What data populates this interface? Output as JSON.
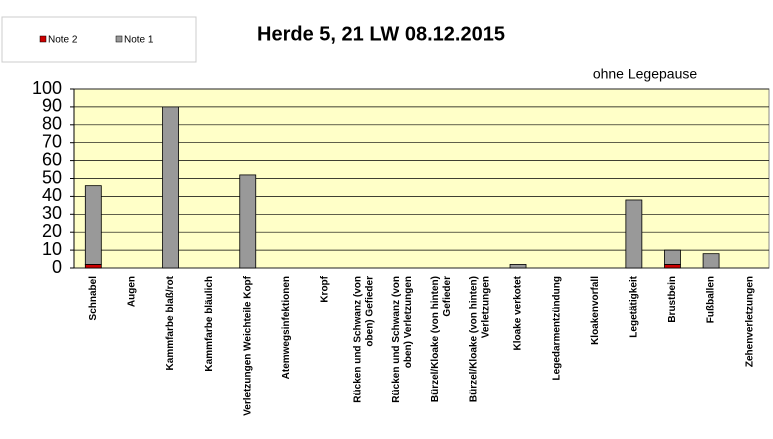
{
  "chart_data": {
    "type": "stacked_bar",
    "title": "Herde 5, 21 LW 08.12.2015",
    "subtitle": "ohne Legepause",
    "categories": [
      "Schnabel",
      "Augen",
      "Kammfarbe blaß/rot",
      "Kammfarbe bläulich",
      "Verletzungen Weichteile Kopf",
      "Atemwegsinfektionen",
      "Kropf",
      "Rücken und Schwanz (von\noben) Gefieder",
      "Rücken und Schwanz (von\noben) Verletzungen",
      "Bürzel/Kloake (von hinten)\nGefieder",
      "Bürzel/Kloake (von hinten)\nVerletzungen",
      "Kloake verkotet",
      "Legedarmentzündung",
      "Kloakenvorfall",
      "Legetätigkeit",
      "Brustbein",
      "Fußballen",
      "Zehenverletzungen"
    ],
    "series": [
      {
        "name": "Note 2",
        "color": "#cc0000",
        "values": [
          2,
          0,
          0,
          0,
          0,
          0,
          0,
          0,
          0,
          0,
          0,
          0,
          0,
          0,
          0,
          2,
          0,
          0
        ]
      },
      {
        "name": "Note 1",
        "color": "#999999",
        "values": [
          44,
          0,
          90,
          0,
          52,
          0,
          0,
          0,
          0,
          0,
          0,
          2,
          0,
          0,
          38,
          8,
          8,
          0
        ]
      }
    ],
    "ylim": [
      0,
      100
    ],
    "yticks": [
      0,
      10,
      20,
      30,
      40,
      50,
      60,
      70,
      80,
      90,
      100
    ],
    "grid": true,
    "legend": "top-left"
  }
}
